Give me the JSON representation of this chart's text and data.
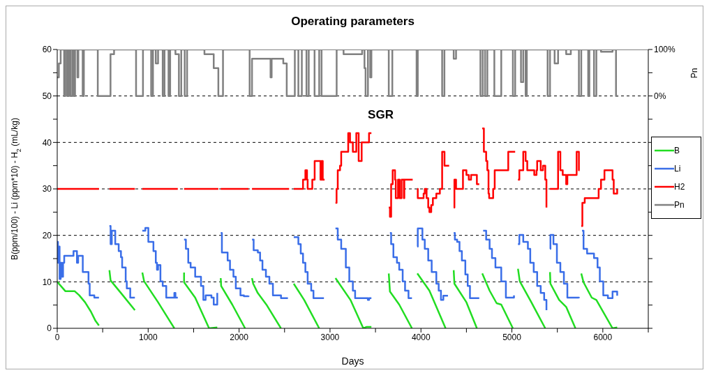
{
  "chart_data": {
    "type": "line",
    "title": "Operating parameters",
    "annotations": [
      "SGR"
    ],
    "xlabel": "Days",
    "ylabel": "B(ppm/100) - Li (ppm*10) - H$_{2}$ (mL/kg)",
    "y2label": "Pn",
    "xlim": [
      0,
      6500
    ],
    "xticks": [
      0,
      {
        "value": 500,
        "label": null
      },
      1000,
      {
        "value": 1500,
        "label": null
      },
      2000,
      {
        "value": 2500,
        "label": null
      },
      3000,
      {
        "value": 3500,
        "label": null
      },
      4000,
      {
        "value": 4500,
        "label": null
      },
      5000,
      {
        "value": 5500,
        "label": null
      },
      6000,
      {
        "value": 6500,
        "label": null
      }
    ],
    "ylim": [
      0,
      60
    ],
    "yticks": [
      0,
      {
        "value": 5,
        "label": null
      },
      10,
      {
        "value": 15,
        "label": null
      },
      20,
      {
        "value": 25,
        "label": null
      },
      30,
      {
        "value": 35,
        "label": null
      },
      40,
      {
        "value": 45,
        "label": null
      },
      50,
      {
        "value": 55,
        "label": null
      },
      60
    ],
    "y2lim": [
      -500,
      100
    ],
    "y2ticks": [
      {
        "value": -500,
        "label": null
      },
      {
        "value": -450,
        "label": null
      },
      {
        "value": -400,
        "label": null
      },
      {
        "value": -350,
        "label": null
      },
      {
        "value": -300,
        "label": null
      },
      {
        "value": -250,
        "label": null
      },
      {
        "value": -200,
        "label": null
      },
      {
        "value": -150,
        "label": null
      },
      {
        "value": -100,
        "label": null
      },
      {
        "value": -50,
        "label": null
      },
      {
        "value": 0,
        "label": "0%"
      },
      {
        "value": 50,
        "label": null
      },
      {
        "value": 100,
        "label": "100%"
      }
    ],
    "grid": "y",
    "legend": "right",
    "series": [
      {
        "name": "B",
        "color": "#22dd22",
        "x": [
          0,
          89,
          191,
          242,
          306,
          370,
          421,
          459,
          500,
          574,
          587,
          701,
          854,
          900,
          936,
          956,
          1109,
          1237,
          1288,
          1340,
          1395,
          1395,
          1517,
          1670,
          1760,
          1780,
          1798,
          1803,
          1925,
          2066,
          2100,
          2142,
          2155,
          2205,
          2307,
          2460,
          2530,
          2601,
          2716,
          2881,
          2970,
          3060,
          3225,
          3366,
          3404,
          3455,
          3550,
          3646,
          3659,
          3761,
          3901,
          3930,
          3960,
          4093,
          4271,
          4320,
          4360,
          4368,
          4500,
          4615,
          4645,
          4674,
          4755,
          4832,
          4883,
          5011,
          5040,
          5067,
          5087,
          5214,
          5367,
          5390,
          5419,
          5424,
          5520,
          5597,
          5699,
          5730,
          5763,
          5788,
          5878,
          5929,
          6107,
          6158
        ],
        "values": [
          10,
          8.0,
          8.0,
          7.1,
          5.6,
          3.6,
          1.6,
          0.6,
          null,
          12.5,
          10.3,
          7.6,
          3.9,
          null,
          12.0,
          10.1,
          5.6,
          1.6,
          0,
          null,
          12.0,
          9.9,
          6.6,
          0,
          0.2,
          null,
          10.8,
          9.1,
          5.1,
          0,
          null,
          10.8,
          9.6,
          7.6,
          4.9,
          0,
          null,
          9.6,
          6.1,
          0,
          null,
          10.8,
          6.1,
          0,
          0.3,
          0.3,
          null,
          11.8,
          7.9,
          5.1,
          0,
          null,
          11.8,
          8.1,
          0,
          null,
          12.5,
          9.6,
          5.6,
          0,
          null,
          11.8,
          8.1,
          5.4,
          5.1,
          0,
          null,
          12.8,
          10.1,
          5.6,
          0,
          null,
          12.1,
          9.6,
          6.1,
          4.6,
          0,
          null,
          11.8,
          9.9,
          6.6,
          6.1,
          0,
          0.2
        ]
      },
      {
        "name": "Li",
        "color": "#3a6ee8",
        "type": "step",
        "x": [
          0,
          8,
          13,
          26,
          38,
          51,
          64,
          77,
          179,
          217,
          230,
          281,
          344,
          357,
          408,
          459,
          500,
          574,
          587,
          600,
          638,
          676,
          701,
          714,
          753,
          765,
          803,
          854,
          900,
          936,
          969,
          1002,
          1058,
          1084,
          1097,
          1109,
          1135,
          1160,
          1199,
          1288,
          1300,
          1326,
          1360,
          1395,
          1415,
          1441,
          1467,
          1517,
          1581,
          1607,
          1632,
          1696,
          1721,
          1760,
          1780,
          1798,
          1811,
          1874,
          1900,
          1938,
          1964,
          2015,
          2053,
          2104,
          2120,
          2142,
          2160,
          2206,
          2231,
          2257,
          2295,
          2333,
          2372,
          2461,
          2537,
          2570,
          2601,
          2652,
          2678,
          2703,
          2729,
          2754,
          2793,
          2818,
          2933,
          3000,
          3060,
          3085,
          3123,
          3174,
          3212,
          3251,
          3276,
          3416,
          3430,
          3455,
          3550,
          3659,
          3672,
          3697,
          3736,
          3761,
          3799,
          3825,
          3863,
          3901,
          3930,
          3960,
          3965,
          4016,
          4042,
          4080,
          4118,
          4169,
          4195,
          4220,
          4246,
          4297,
          4330,
          4360,
          4373,
          4398,
          4424,
          4450,
          4488,
          4514,
          4539,
          4641,
          4660,
          4684,
          4717,
          4755,
          4781,
          4819,
          4883,
          4934,
          5023,
          5045,
          5067,
          5082,
          5125,
          5176,
          5202,
          5240,
          5278,
          5317,
          5355,
          5380,
          5400,
          5419,
          5424,
          5457,
          5495,
          5533,
          5572,
          5610,
          5737,
          5750,
          5771,
          5788,
          5827,
          5903,
          5942,
          5967,
          6005,
          6056,
          6107,
          6158
        ],
        "values": [
          18.6,
          14.1,
          17.6,
          10.6,
          14.1,
          11.1,
          14.1,
          15.6,
          16.6,
          14.1,
          15.6,
          12.1,
          9.6,
          7.1,
          6.6,
          6.6,
          null,
          22.0,
          18.1,
          21.0,
          18.1,
          16.6,
          15.3,
          13.1,
          10.1,
          8.6,
          6.6,
          6.6,
          null,
          21.0,
          21.6,
          18.6,
          16.6,
          14.1,
          12.6,
          13.6,
          10.1,
          9.1,
          6.6,
          7.6,
          6.6,
          6.6,
          null,
          19.1,
          17.1,
          14.1,
          13.1,
          11.1,
          9.1,
          6.1,
          7.1,
          6.6,
          5.1,
          7.6,
          null,
          20.5,
          16.3,
          14.6,
          12.6,
          11.1,
          8.6,
          7.1,
          6.9,
          7.0,
          null,
          19.1,
          16.8,
          16.3,
          14.6,
          12.6,
          11.1,
          9.6,
          7.1,
          6.5,
          6.5,
          null,
          19.6,
          18.1,
          16.1,
          14.1,
          12.1,
          9.6,
          8.1,
          6.5,
          6.5,
          null,
          21.5,
          19.1,
          17.1,
          13.1,
          10.1,
          8.1,
          6.5,
          6.1,
          6.5,
          6.5,
          null,
          20.5,
          18.1,
          15.3,
          14.1,
          12.6,
          10.1,
          8.1,
          6.5,
          6.5,
          null,
          17.6,
          21.5,
          19.1,
          17.1,
          14.6,
          12.1,
          9.6,
          8.1,
          6.1,
          7.0,
          7.0,
          null,
          20.5,
          19.1,
          18.6,
          16.6,
          14.6,
          11.6,
          9.1,
          6.5,
          6.5,
          null,
          21.0,
          19.1,
          17.1,
          15.1,
          13.1,
          10.1,
          6.6,
          7.1,
          null,
          18.1,
          20.1,
          18.6,
          17.1,
          14.1,
          12.1,
          9.1,
          7.6,
          6.1,
          3.9,
          null,
          17.1,
          20.1,
          18.1,
          14.1,
          12.1,
          9.6,
          6.6,
          6.5,
          null,
          21.0,
          17.1,
          16.1,
          15.1,
          13.1,
          10.1,
          7.1,
          6.5,
          7.9,
          7.0
        ]
      },
      {
        "name": "H2",
        "color": "#ff0000",
        "type": "step",
        "x": [
          0,
          459,
          500,
          574,
          854,
          900,
          936,
          1326,
          1360,
          1395,
          1772,
          1785,
          1798,
          2104,
          2120,
          2142,
          2550,
          2575,
          2601,
          2703,
          2729,
          2747,
          2754,
          2805,
          2831,
          2895,
          2907,
          2920,
          2940,
          3000,
          3060,
          3072,
          3085,
          3110,
          3123,
          3200,
          3220,
          3251,
          3289,
          3315,
          3348,
          3429,
          3455,
          3550,
          3646,
          3659,
          3672,
          3689,
          3715,
          3723,
          3748,
          3766,
          3787,
          3812,
          3817,
          3909,
          3935,
          3960,
          3965,
          4029,
          4042,
          4062,
          4080,
          4093,
          4113,
          4131,
          4169,
          4208,
          4233,
          4259,
          4310,
          4335,
          4360,
          4368,
          4386,
          4462,
          4500,
          4526,
          4551,
          4615,
          4641,
          4660,
          4674,
          4692,
          4717,
          4730,
          4743,
          4750,
          4794,
          4811,
          4947,
          4960,
          5036,
          5050,
          5067,
          5082,
          5125,
          5151,
          5169,
          5246,
          5271,
          5278,
          5317,
          5342,
          5367,
          5380,
          5400,
          5419,
          5508,
          5533,
          5559,
          5597,
          5610,
          5712,
          5737,
          5745,
          5755,
          5763,
          5775,
          5801,
          5954,
          5980,
          6018,
          6107,
          6120,
          6158
        ],
        "values": [
          30,
          30,
          null,
          30,
          30,
          null,
          30,
          30,
          null,
          30,
          30,
          null,
          30,
          30,
          null,
          30,
          30,
          null,
          30,
          32,
          34,
          32,
          30,
          32,
          36,
          32,
          36,
          32,
          32,
          null,
          27,
          30,
          34,
          35,
          38,
          42,
          40,
          38,
          42,
          36,
          40,
          42,
          42,
          null,
          26,
          24,
          31,
          34,
          32,
          28,
          32,
          28,
          32,
          28,
          32,
          32,
          null,
          30,
          28,
          29,
          30,
          28,
          26,
          25,
          26.5,
          28,
          29,
          30,
          38,
          35,
          35,
          null,
          26,
          32,
          30,
          34,
          33,
          32,
          33,
          31,
          31,
          null,
          43,
          38,
          36,
          34,
          29,
          28,
          30,
          34,
          34,
          38,
          38,
          null,
          32,
          34,
          38,
          36,
          34,
          33,
          34,
          36,
          34,
          35,
          32,
          26,
          null,
          30,
          38,
          34,
          33,
          31,
          33,
          38,
          34,
          34,
          null,
          22,
          27,
          28,
          30,
          32,
          34,
          32,
          29,
          30
        ]
      },
      {
        "name": "Pn",
        "color": "#808080",
        "type": "step",
        "axis": "y2",
        "x": [
          0,
          18,
          38,
          76,
          89,
          109,
          127,
          145,
          166,
          181,
          196,
          222,
          232,
          280,
          293,
          446,
          586,
          625,
          867,
          943,
          1033,
          1053,
          1084,
          1109,
          1160,
          1180,
          1224,
          1242,
          1300,
          1338,
          1364,
          1402,
          1428,
          1619,
          1721,
          1772,
          1823,
          2116,
          2142,
          2346,
          2358,
          2486,
          2524,
          2613,
          2652,
          2690,
          2741,
          2766,
          2830,
          2881,
          2907,
          3073,
          3149,
          3353,
          3379,
          3391,
          3417,
          3442,
          3455,
          3646,
          3685,
          3952,
          3965,
          4233,
          4258,
          4360,
          4386,
          4654,
          4679,
          4705,
          4730,
          4807,
          4883,
          5011,
          5036,
          5100,
          5125,
          5151,
          5164,
          5393,
          5419,
          5470,
          5508,
          5597,
          5648,
          5737,
          5763,
          5839,
          5852,
          5903,
          5929,
          5980,
          6107,
          6145,
          6171
        ],
        "values": [
          40,
          70,
          100,
          0,
          100,
          0,
          100,
          0,
          100,
          0,
          100,
          40,
          100,
          0,
          100,
          0,
          90,
          100,
          0,
          100,
          0,
          100,
          70,
          100,
          0,
          100,
          0,
          100,
          90,
          0,
          100,
          0,
          100,
          90,
          60,
          0,
          100,
          0,
          80,
          40,
          80,
          70,
          0,
          100,
          0,
          100,
          0,
          100,
          0,
          100,
          0,
          100,
          90,
          100,
          60,
          0,
          100,
          40,
          100,
          0,
          100,
          0,
          100,
          0,
          100,
          80,
          100,
          0,
          100,
          0,
          100,
          0,
          100,
          0,
          100,
          30,
          100,
          0,
          100,
          0,
          100,
          70,
          100,
          90,
          100,
          0,
          100,
          0,
          100,
          0,
          100,
          95,
          100,
          0,
          0
        ]
      }
    ]
  }
}
